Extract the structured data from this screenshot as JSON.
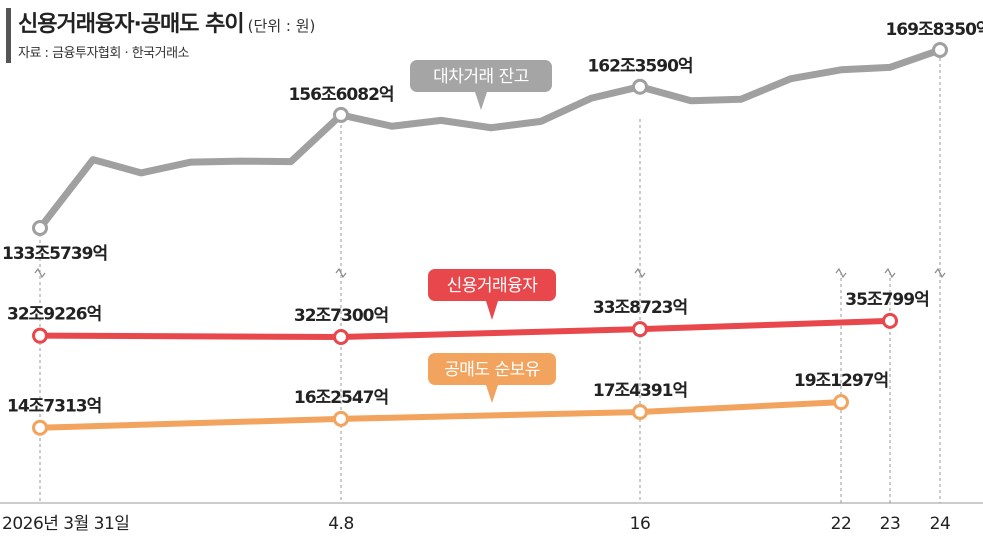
{
  "title": "신용거래융자·공매도 추이",
  "unit": "(단위 : 원)",
  "source": "자료 : 금융투자협회 · 한국거래소",
  "chart_data": {
    "type": "line",
    "title": "신용거래융자·공매도 추이",
    "x": [
      "2026년 3월 31일",
      "",
      "",
      "",
      "",
      "",
      "4.8",
      "",
      "",
      "",
      "",
      "",
      "16",
      "",
      "",
      "",
      "22",
      "23",
      "24"
    ],
    "series": [
      {
        "name": "대차거래 잔고",
        "color": "#a0a0a0",
        "values": [
          1335739,
          1475000,
          1448000,
          1470000,
          1472000,
          1471000,
          1566082,
          1543000,
          1555000,
          1540000,
          1553000,
          1600000,
          1623590,
          1595000,
          1598000,
          1640000,
          1658000,
          1663000,
          1698350
        ],
        "labels": [
          {
            "index": 0,
            "text": "133조5739억"
          },
          {
            "index": 6,
            "text": "156조6082억"
          },
          {
            "index": 12,
            "text": "162조3590억"
          },
          {
            "index": 18,
            "text": "169조8350억"
          }
        ]
      },
      {
        "name": "신용거래융자",
        "color": "#e8474c",
        "values": [
          329226,
          null,
          null,
          null,
          null,
          null,
          327300,
          null,
          null,
          null,
          null,
          null,
          338723,
          null,
          null,
          null,
          null,
          350799,
          null
        ],
        "labels": [
          {
            "index": 0,
            "text": "32조9226억"
          },
          {
            "index": 6,
            "text": "32조7300억"
          },
          {
            "index": 12,
            "text": "33조8723억"
          },
          {
            "index": 17,
            "text": "35조799억"
          }
        ]
      },
      {
        "name": "공매도 순보유",
        "color": "#f2a35e",
        "values": [
          147313,
          null,
          null,
          null,
          null,
          null,
          162547,
          null,
          null,
          null,
          null,
          null,
          174391,
          null,
          null,
          null,
          191297,
          null,
          null
        ],
        "labels": [
          {
            "index": 0,
            "text": "14조7313억"
          },
          {
            "index": 6,
            "text": "16조2547억"
          },
          {
            "index": 12,
            "text": "17조4391억"
          },
          {
            "index": 16,
            "text": "19조1297억"
          }
        ]
      }
    ]
  }
}
